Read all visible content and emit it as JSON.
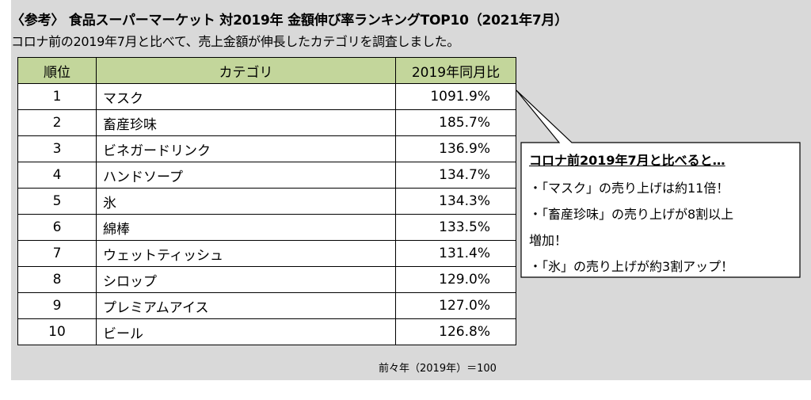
{
  "title": "〈参考〉 食品スーパーマーケット 対2019年 金額伸び率ランキングTOP10（2021年7月）",
  "subtitle": "コロナ前の2019年7月と比べて、売上金額が伸長したカテゴリを調査しました。",
  "table": {
    "headers": [
      "順位",
      "カテゴリ",
      "2019年同月比"
    ],
    "rows": [
      {
        "rank": "1",
        "category": "マスク",
        "value": "1091.9%"
      },
      {
        "rank": "2",
        "category": "畜産珍味",
        "value": "185.7%"
      },
      {
        "rank": "3",
        "category": "ビネガードリンク",
        "value": "136.9%"
      },
      {
        "rank": "4",
        "category": "ハンドソープ",
        "value": "134.7%"
      },
      {
        "rank": "5",
        "category": "氷",
        "value": "134.3%"
      },
      {
        "rank": "6",
        "category": "綿棒",
        "value": "133.5%"
      },
      {
        "rank": "7",
        "category": "ウェットティッシュ",
        "value": "131.4%"
      },
      {
        "rank": "8",
        "category": "シロップ",
        "value": "129.0%"
      },
      {
        "rank": "9",
        "category": "プレミアムアイス",
        "value": "127.0%"
      },
      {
        "rank": "10",
        "category": "ビール",
        "value": "126.8%"
      }
    ]
  },
  "footnote": "前々年（2019年）＝100",
  "callout": {
    "heading": "コロナ前2019年7月と比べると…",
    "lines": [
      "・「マスク」の売り上げは約11倍！",
      "・「畜産珍味」の売り上げが8割以上",
      "増加！",
      "・「氷」の売り上げが約3割アップ！"
    ]
  },
  "colors": {
    "panel": "#d9d9d9",
    "header": "#c3d69b"
  }
}
